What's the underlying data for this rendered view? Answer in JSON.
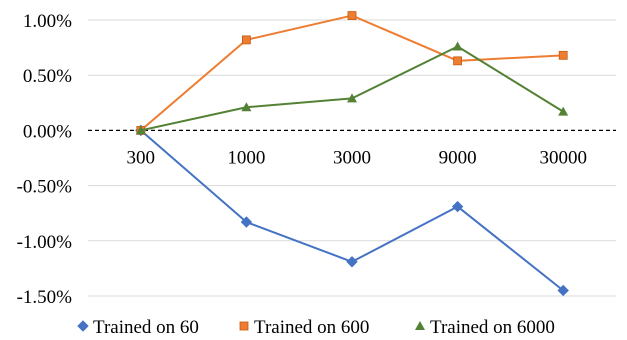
{
  "chart_data": {
    "type": "line",
    "categories": [
      "300",
      "1000",
      "3000",
      "9000",
      "30000"
    ],
    "series": [
      {
        "name": "Trained on 60",
        "values": [
          0.0,
          -0.83,
          -1.19,
          -0.69,
          -1.45
        ],
        "color": "#4472c4",
        "marker": "diamond"
      },
      {
        "name": "Trained on 600",
        "values": [
          0.0,
          0.82,
          1.04,
          0.63,
          0.68
        ],
        "color": "#ed7d31",
        "marker": "square"
      },
      {
        "name": "Trained on 6000",
        "values": [
          0.0,
          0.21,
          0.29,
          0.76,
          0.17
        ],
        "color": "#548235",
        "marker": "triangle"
      }
    ],
    "y_ticks": [
      "1.00%",
      "0.50%",
      "0.00%",
      "-0.50%",
      "-1.00%",
      "-1.50%"
    ],
    "ylim": [
      -1.5,
      1.0
    ],
    "grid": true,
    "zero_line": "dashed",
    "legend": "bottom"
  }
}
